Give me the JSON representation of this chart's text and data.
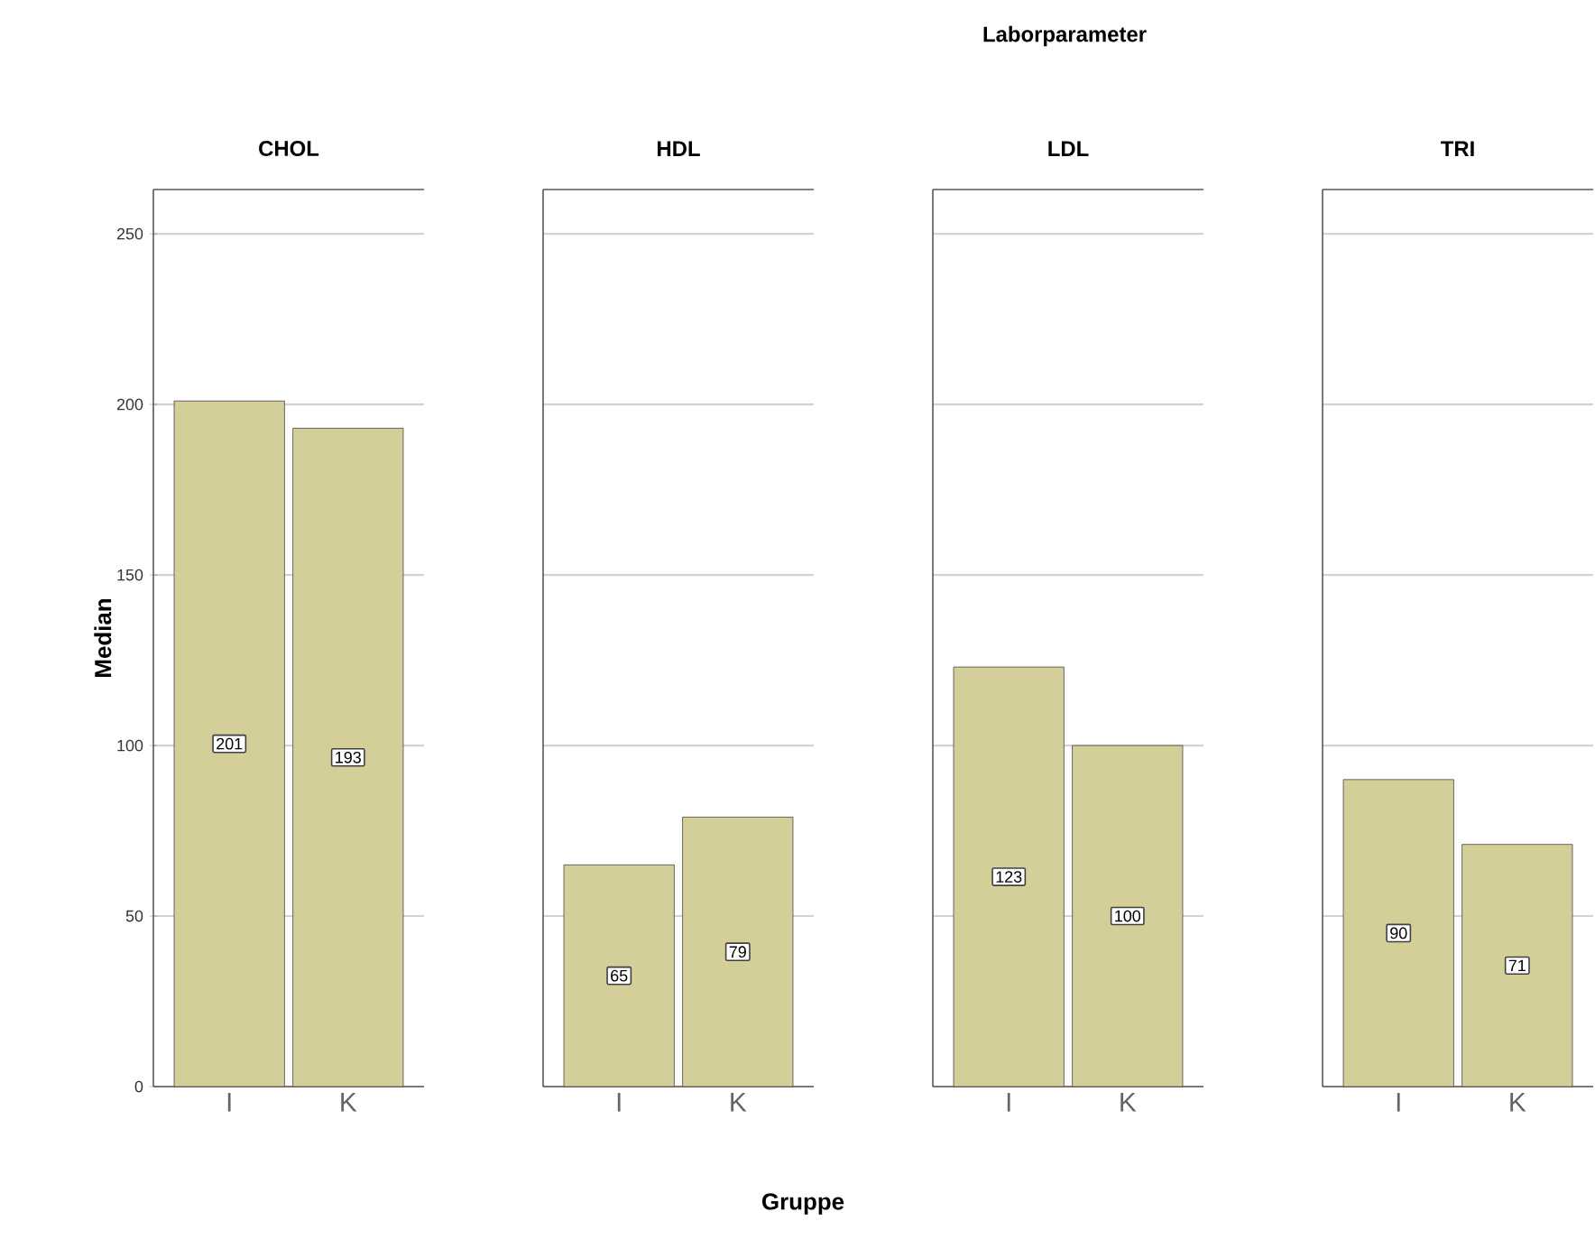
{
  "chart_data": [
    {
      "type": "bar",
      "title": "CHOL",
      "ylabel": "Median",
      "categories": [
        "I",
        "K"
      ],
      "values": [
        201,
        193
      ],
      "color": "#d4cf98",
      "data_labels": true,
      "ylim": [
        0,
        263
      ],
      "yticks": [
        0,
        50,
        100,
        150,
        200,
        250
      ],
      "grid": "y"
    },
    {
      "type": "bar",
      "title": "HDL",
      "xlabel": "Gruppe",
      "categories": [
        "I",
        "K"
      ],
      "values": [
        65,
        79
      ],
      "color": "#d4cf98",
      "data_labels": true,
      "ylim": [
        0,
        263
      ],
      "yticks": [
        0,
        50,
        100,
        150,
        200,
        250
      ],
      "grid": "y",
      "tick_labels": "x"
    },
    {
      "type": "bar",
      "title": "LDL",
      "annotations": [
        "Laborparameter"
      ],
      "categories": [
        "I",
        "K"
      ],
      "values": [
        123,
        100
      ],
      "color": "#d4cf98",
      "data_labels": true,
      "ylim": [
        0,
        263
      ],
      "yticks": [
        0,
        50,
        100,
        150,
        200,
        250
      ],
      "grid": "y",
      "tick_labels": "x"
    },
    {
      "type": "bar",
      "title": "TRI",
      "categories": [
        "I",
        "K"
      ],
      "values": [
        90,
        71
      ],
      "color": "#d4cf98",
      "data_labels": true,
      "ylim": [
        0,
        263
      ],
      "yticks": [
        0,
        50,
        100,
        150,
        200,
        250
      ],
      "grid": "y",
      "tick_labels": "x"
    }
  ]
}
